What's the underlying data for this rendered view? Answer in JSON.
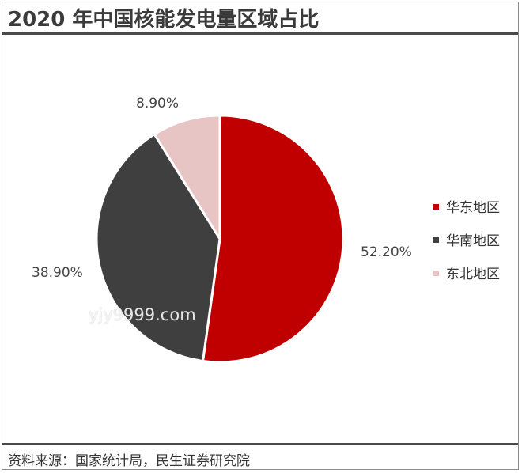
{
  "header": {
    "title": "2020 年中国核能发电量区域占比"
  },
  "footer": {
    "source": "资料来源：国家统计局，民生证券研究院"
  },
  "watermark": "yjy9999.com",
  "chart_data": {
    "type": "pie",
    "title": "2020 年中国核能发电量区域占比",
    "unit": "%",
    "legend_position": "right",
    "slices": [
      {
        "name": "华东地区",
        "value": 52.2,
        "label": "52.20%",
        "color": "#c00000"
      },
      {
        "name": "华南地区",
        "value": 38.9,
        "label": "38.90%",
        "color": "#3f3f3f"
      },
      {
        "name": "东北地区",
        "value": 8.9,
        "label": "8.90%",
        "color": "#e8c5c5"
      }
    ]
  }
}
